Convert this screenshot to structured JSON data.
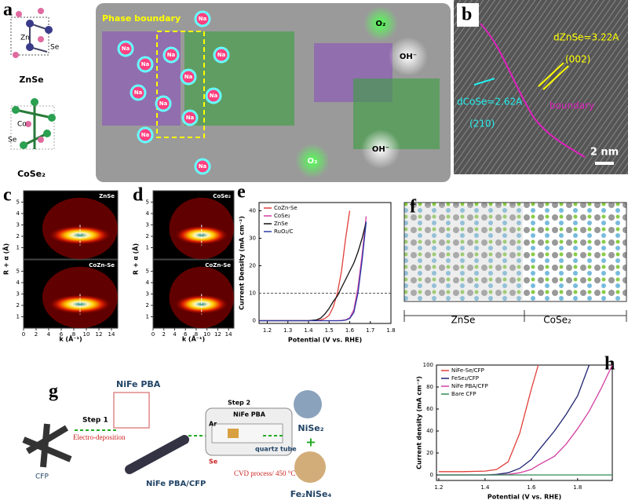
{
  "panel_a": {
    "letter": "a",
    "zn": "Zn",
    "se_top": "Se",
    "znse": "ZnSe",
    "co": "Co",
    "se_bottom": "Se",
    "cose2": "CoSe₂",
    "phase_boundary": "Phase boundary",
    "na_labels": [
      "Na",
      "Na",
      "Na",
      "Na",
      "Na",
      "Na",
      "Na",
      "Na",
      "Na",
      "Na",
      "Na",
      "Na"
    ],
    "o2_labels": [
      "O₂",
      "O₂"
    ],
    "oh_labels": [
      "OH⁻",
      "OH⁻"
    ]
  },
  "panel_b": {
    "letter": "b",
    "d_znse": "dZnSe=3.22A",
    "plane_znse": "(002)",
    "d_cose": "dCoSe=2.62A",
    "plane_cose": "(210)",
    "boundary": "boundary",
    "scale": "2 nm"
  },
  "wavelet": {
    "ylabel": "R + α (Å)",
    "xlabel": "k (Å⁻¹)",
    "yticks": [
      1,
      2,
      3,
      4,
      5
    ],
    "xticks": [
      0,
      2,
      4,
      6,
      8,
      10,
      12,
      14
    ],
    "xlim": [
      0,
      15
    ],
    "ylim": [
      0,
      6
    ],
    "panels": [
      {
        "letter": "c",
        "top": "ZnSe",
        "bottom": "CoZn-Se"
      },
      {
        "letter": "d",
        "top": "CoSe₂",
        "bottom": "CoZn-Se"
      }
    ]
  },
  "panel_f": {
    "letter": "f",
    "left": "ZnSe",
    "right": "CoSe₂"
  },
  "panel_g": {
    "letter": "g",
    "pba": "NiFe PBA",
    "step1": "Step 1",
    "electro": "Electro-deposition",
    "cfp": "CFP",
    "pba_cfp": "NiFe PBA/CFP",
    "step2": "Step 2",
    "pba2": "NiFe PBA",
    "ar": "Ar",
    "se": "Se",
    "quartz": "quartz tube",
    "cvd": "CVD process/ 450 °C",
    "nise2": "NiSe₂",
    "plus": "+",
    "fe2nise4": "Fe₂NiSe₄"
  },
  "chart_data": [
    {
      "type": "line",
      "label": "e",
      "ylabel": "Current Density (mA cm⁻²)",
      "xlabel": "Potential (V vs. RHE)",
      "x": [
        1.16,
        1.3,
        1.4,
        1.44,
        1.46,
        1.48,
        1.5,
        1.52,
        1.54,
        1.56,
        1.58,
        1.6,
        1.62,
        1.64,
        1.66,
        1.68,
        1.7
      ],
      "series": [
        {
          "name": "CoZn-Se",
          "color": "#e0403a",
          "values": [
            0,
            0,
            0,
            0.1,
            0.3,
            0.8,
            2,
            5,
            10,
            18,
            30,
            40,
            null,
            null,
            null,
            null,
            null
          ]
        },
        {
          "name": "CoSe₂",
          "color": "#d23fa0",
          "values": [
            0,
            0,
            0,
            0,
            0,
            0,
            0,
            0,
            0,
            0.1,
            0.3,
            1,
            4,
            12,
            24,
            38,
            null
          ]
        },
        {
          "name": "ZnSe",
          "color": "#111111",
          "values": [
            0,
            0,
            0,
            0.3,
            1,
            2.5,
            4.5,
            7,
            9,
            12,
            15,
            18,
            21,
            25,
            30,
            36,
            null
          ]
        },
        {
          "name": "RuO₂/C",
          "color": "#2b3aa6",
          "values": [
            0,
            0,
            0,
            0,
            0,
            0,
            0,
            0,
            0,
            0,
            0.2,
            0.8,
            3,
            10,
            22,
            36,
            null
          ]
        }
      ],
      "reference_line": 10,
      "xlim": [
        1.16,
        1.8
      ],
      "ylim": [
        -1,
        43
      ],
      "xticks": [
        1.2,
        1.3,
        1.4,
        1.5,
        1.6,
        1.7,
        1.8
      ],
      "yticks": [
        0,
        10,
        20,
        30,
        40
      ],
      "legend": "upper left"
    },
    {
      "type": "line",
      "label": "h",
      "ylabel": "Current density (mA cm⁻²)",
      "xlabel": "Potential (V vs. RHE)",
      "x": [
        1.2,
        1.3,
        1.4,
        1.45,
        1.5,
        1.55,
        1.6,
        1.63,
        1.7,
        1.75,
        1.8,
        1.85,
        1.9,
        1.95
      ],
      "series": [
        {
          "name": "NiFe-Se/CFP",
          "color": "#e0403a",
          "values": [
            3,
            3,
            3.5,
            5,
            12,
            38,
            78,
            100,
            null,
            null,
            null,
            null,
            null,
            null
          ]
        },
        {
          "name": "FeSe₂/CFP",
          "color": "#1f2370",
          "values": [
            0,
            0,
            0,
            0.5,
            2,
            6,
            14,
            22,
            40,
            55,
            72,
            100,
            null,
            null
          ]
        },
        {
          "name": "NiFe PBA/CFP",
          "color": "#d23fa0",
          "values": [
            0,
            0,
            0,
            0,
            0.5,
            2,
            5,
            9,
            17,
            28,
            42,
            58,
            78,
            100
          ]
        },
        {
          "name": "Bare CFP",
          "color": "#2e8b57",
          "values": [
            0,
            0,
            0,
            0,
            0,
            0,
            0,
            0,
            0,
            0,
            0,
            0,
            0,
            0
          ]
        }
      ],
      "xlim": [
        1.19,
        1.95
      ],
      "ylim": [
        -5,
        100
      ],
      "xticks": [
        1.2,
        1.4,
        1.6,
        1.8
      ],
      "yticks": [
        0,
        20,
        40,
        60,
        80,
        100
      ],
      "legend": "upper left"
    }
  ]
}
